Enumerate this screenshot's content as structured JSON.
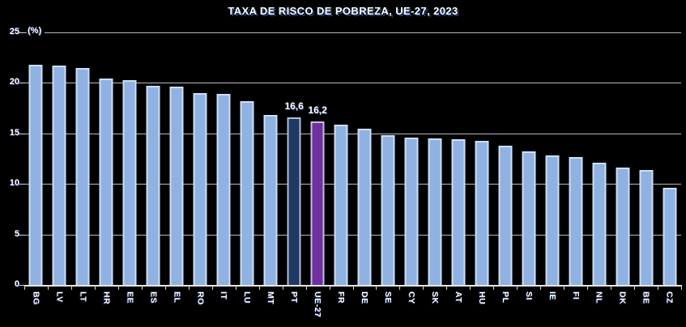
{
  "title": "TAXA DE RISCO DE POBREZA, UE-27, 2023",
  "chart_data": {
    "type": "bar",
    "title": "TAXA DE RISCO DE POBREZA, UE-27, 2023",
    "unit_label": "(%)",
    "ylabel": "",
    "xlabel": "",
    "ylim": [
      0,
      25
    ],
    "yticks": [
      25,
      20,
      15,
      10,
      5,
      0
    ],
    "grid": true,
    "legend": false,
    "categories": [
      "BG",
      "LV",
      "LT",
      "HR",
      "EE",
      "ES",
      "EL",
      "RO",
      "IT",
      "LU",
      "MT",
      "PT",
      "UE-27",
      "FR",
      "DE",
      "SE",
      "CY",
      "SK",
      "AT",
      "HU",
      "PL",
      "SI",
      "IE",
      "FI",
      "NL",
      "DK",
      "BE",
      "CZ"
    ],
    "values": [
      21.8,
      21.7,
      21.5,
      20.4,
      20.3,
      19.7,
      19.6,
      19.0,
      18.9,
      18.2,
      16.8,
      16.6,
      16.2,
      15.9,
      15.5,
      14.8,
      14.6,
      14.5,
      14.4,
      14.3,
      13.8,
      13.2,
      12.8,
      12.7,
      12.1,
      11.6,
      11.4,
      9.6
    ],
    "data_labels": [
      {
        "category": "PT",
        "text": "16,6"
      },
      {
        "category": "UE-27",
        "text": "16,2"
      }
    ],
    "colors": {
      "default": "#8FB2E2",
      "PT": "#1F3864",
      "UE-27": "#7030A0"
    }
  }
}
